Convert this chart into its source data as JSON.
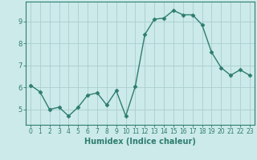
{
  "x": [
    0,
    1,
    2,
    3,
    4,
    5,
    6,
    7,
    8,
    9,
    10,
    11,
    12,
    13,
    14,
    15,
    16,
    17,
    18,
    19,
    20,
    21,
    22,
    23
  ],
  "y": [
    6.1,
    5.8,
    5.0,
    5.1,
    4.7,
    5.1,
    5.65,
    5.75,
    5.2,
    5.85,
    4.7,
    6.05,
    8.4,
    9.1,
    9.15,
    9.5,
    9.3,
    9.3,
    8.85,
    7.6,
    6.9,
    6.55,
    6.8,
    6.55
  ],
  "line_color": "#2e7d6e",
  "marker": "D",
  "markersize": 2.5,
  "linewidth": 1.0,
  "bg_color": "#cceaea",
  "grid_color": "#aacece",
  "xlabel": "Humidex (Indice chaleur)",
  "xlabel_fontsize": 7,
  "tick_color": "#2e7d6e",
  "axis_color": "#2e7d6e",
  "ylim": [
    4.3,
    9.9
  ],
  "xlim": [
    -0.5,
    23.5
  ],
  "yticks": [
    5,
    6,
    7,
    8,
    9
  ],
  "xticks": [
    0,
    1,
    2,
    3,
    4,
    5,
    6,
    7,
    8,
    9,
    10,
    11,
    12,
    13,
    14,
    15,
    16,
    17,
    18,
    19,
    20,
    21,
    22,
    23
  ],
  "xtick_labels": [
    "0",
    "1",
    "2",
    "3",
    "4",
    "5",
    "6",
    "7",
    "8",
    "9",
    "10",
    "11",
    "12",
    "13",
    "14",
    "15",
    "16",
    "17",
    "18",
    "19",
    "20",
    "21",
    "22",
    "23"
  ],
  "tick_fontsize": 5.5,
  "ytick_fontsize": 6
}
